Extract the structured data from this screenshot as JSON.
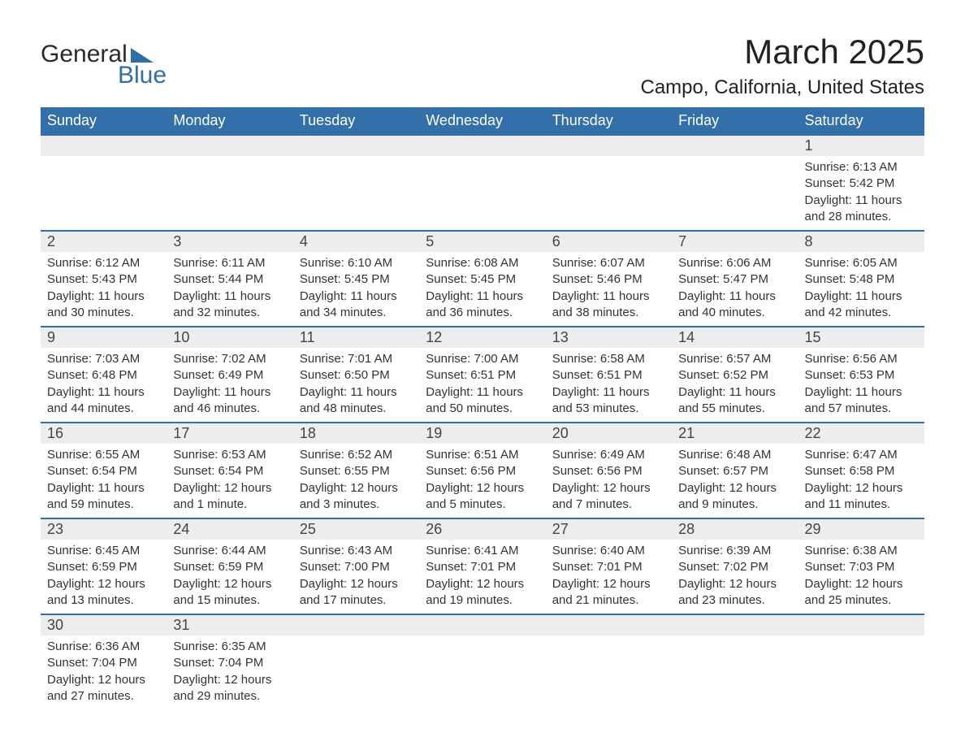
{
  "logo": {
    "word1": "General",
    "word2": "Blue"
  },
  "title": "March 2025",
  "location": "Campo, California, United States",
  "colors": {
    "header_bg": "#336fa8",
    "header_text": "#ffffff",
    "daynum_bg": "#ededed",
    "border": "#336fa8",
    "text": "#333333",
    "logo_blue": "#2f6fa8"
  },
  "weekdays": [
    "Sunday",
    "Monday",
    "Tuesday",
    "Wednesday",
    "Thursday",
    "Friday",
    "Saturday"
  ],
  "weeks": [
    [
      null,
      null,
      null,
      null,
      null,
      null,
      {
        "n": "1",
        "sunrise": "Sunrise: 6:13 AM",
        "sunset": "Sunset: 5:42 PM",
        "d1": "Daylight: 11 hours",
        "d2": "and 28 minutes."
      }
    ],
    [
      {
        "n": "2",
        "sunrise": "Sunrise: 6:12 AM",
        "sunset": "Sunset: 5:43 PM",
        "d1": "Daylight: 11 hours",
        "d2": "and 30 minutes."
      },
      {
        "n": "3",
        "sunrise": "Sunrise: 6:11 AM",
        "sunset": "Sunset: 5:44 PM",
        "d1": "Daylight: 11 hours",
        "d2": "and 32 minutes."
      },
      {
        "n": "4",
        "sunrise": "Sunrise: 6:10 AM",
        "sunset": "Sunset: 5:45 PM",
        "d1": "Daylight: 11 hours",
        "d2": "and 34 minutes."
      },
      {
        "n": "5",
        "sunrise": "Sunrise: 6:08 AM",
        "sunset": "Sunset: 5:45 PM",
        "d1": "Daylight: 11 hours",
        "d2": "and 36 minutes."
      },
      {
        "n": "6",
        "sunrise": "Sunrise: 6:07 AM",
        "sunset": "Sunset: 5:46 PM",
        "d1": "Daylight: 11 hours",
        "d2": "and 38 minutes."
      },
      {
        "n": "7",
        "sunrise": "Sunrise: 6:06 AM",
        "sunset": "Sunset: 5:47 PM",
        "d1": "Daylight: 11 hours",
        "d2": "and 40 minutes."
      },
      {
        "n": "8",
        "sunrise": "Sunrise: 6:05 AM",
        "sunset": "Sunset: 5:48 PM",
        "d1": "Daylight: 11 hours",
        "d2": "and 42 minutes."
      }
    ],
    [
      {
        "n": "9",
        "sunrise": "Sunrise: 7:03 AM",
        "sunset": "Sunset: 6:48 PM",
        "d1": "Daylight: 11 hours",
        "d2": "and 44 minutes."
      },
      {
        "n": "10",
        "sunrise": "Sunrise: 7:02 AM",
        "sunset": "Sunset: 6:49 PM",
        "d1": "Daylight: 11 hours",
        "d2": "and 46 minutes."
      },
      {
        "n": "11",
        "sunrise": "Sunrise: 7:01 AM",
        "sunset": "Sunset: 6:50 PM",
        "d1": "Daylight: 11 hours",
        "d2": "and 48 minutes."
      },
      {
        "n": "12",
        "sunrise": "Sunrise: 7:00 AM",
        "sunset": "Sunset: 6:51 PM",
        "d1": "Daylight: 11 hours",
        "d2": "and 50 minutes."
      },
      {
        "n": "13",
        "sunrise": "Sunrise: 6:58 AM",
        "sunset": "Sunset: 6:51 PM",
        "d1": "Daylight: 11 hours",
        "d2": "and 53 minutes."
      },
      {
        "n": "14",
        "sunrise": "Sunrise: 6:57 AM",
        "sunset": "Sunset: 6:52 PM",
        "d1": "Daylight: 11 hours",
        "d2": "and 55 minutes."
      },
      {
        "n": "15",
        "sunrise": "Sunrise: 6:56 AM",
        "sunset": "Sunset: 6:53 PM",
        "d1": "Daylight: 11 hours",
        "d2": "and 57 minutes."
      }
    ],
    [
      {
        "n": "16",
        "sunrise": "Sunrise: 6:55 AM",
        "sunset": "Sunset: 6:54 PM",
        "d1": "Daylight: 11 hours",
        "d2": "and 59 minutes."
      },
      {
        "n": "17",
        "sunrise": "Sunrise: 6:53 AM",
        "sunset": "Sunset: 6:54 PM",
        "d1": "Daylight: 12 hours",
        "d2": "and 1 minute."
      },
      {
        "n": "18",
        "sunrise": "Sunrise: 6:52 AM",
        "sunset": "Sunset: 6:55 PM",
        "d1": "Daylight: 12 hours",
        "d2": "and 3 minutes."
      },
      {
        "n": "19",
        "sunrise": "Sunrise: 6:51 AM",
        "sunset": "Sunset: 6:56 PM",
        "d1": "Daylight: 12 hours",
        "d2": "and 5 minutes."
      },
      {
        "n": "20",
        "sunrise": "Sunrise: 6:49 AM",
        "sunset": "Sunset: 6:56 PM",
        "d1": "Daylight: 12 hours",
        "d2": "and 7 minutes."
      },
      {
        "n": "21",
        "sunrise": "Sunrise: 6:48 AM",
        "sunset": "Sunset: 6:57 PM",
        "d1": "Daylight: 12 hours",
        "d2": "and 9 minutes."
      },
      {
        "n": "22",
        "sunrise": "Sunrise: 6:47 AM",
        "sunset": "Sunset: 6:58 PM",
        "d1": "Daylight: 12 hours",
        "d2": "and 11 minutes."
      }
    ],
    [
      {
        "n": "23",
        "sunrise": "Sunrise: 6:45 AM",
        "sunset": "Sunset: 6:59 PM",
        "d1": "Daylight: 12 hours",
        "d2": "and 13 minutes."
      },
      {
        "n": "24",
        "sunrise": "Sunrise: 6:44 AM",
        "sunset": "Sunset: 6:59 PM",
        "d1": "Daylight: 12 hours",
        "d2": "and 15 minutes."
      },
      {
        "n": "25",
        "sunrise": "Sunrise: 6:43 AM",
        "sunset": "Sunset: 7:00 PM",
        "d1": "Daylight: 12 hours",
        "d2": "and 17 minutes."
      },
      {
        "n": "26",
        "sunrise": "Sunrise: 6:41 AM",
        "sunset": "Sunset: 7:01 PM",
        "d1": "Daylight: 12 hours",
        "d2": "and 19 minutes."
      },
      {
        "n": "27",
        "sunrise": "Sunrise: 6:40 AM",
        "sunset": "Sunset: 7:01 PM",
        "d1": "Daylight: 12 hours",
        "d2": "and 21 minutes."
      },
      {
        "n": "28",
        "sunrise": "Sunrise: 6:39 AM",
        "sunset": "Sunset: 7:02 PM",
        "d1": "Daylight: 12 hours",
        "d2": "and 23 minutes."
      },
      {
        "n": "29",
        "sunrise": "Sunrise: 6:38 AM",
        "sunset": "Sunset: 7:03 PM",
        "d1": "Daylight: 12 hours",
        "d2": "and 25 minutes."
      }
    ],
    [
      {
        "n": "30",
        "sunrise": "Sunrise: 6:36 AM",
        "sunset": "Sunset: 7:04 PM",
        "d1": "Daylight: 12 hours",
        "d2": "and 27 minutes."
      },
      {
        "n": "31",
        "sunrise": "Sunrise: 6:35 AM",
        "sunset": "Sunset: 7:04 PM",
        "d1": "Daylight: 12 hours",
        "d2": "and 29 minutes."
      },
      null,
      null,
      null,
      null,
      null
    ]
  ]
}
